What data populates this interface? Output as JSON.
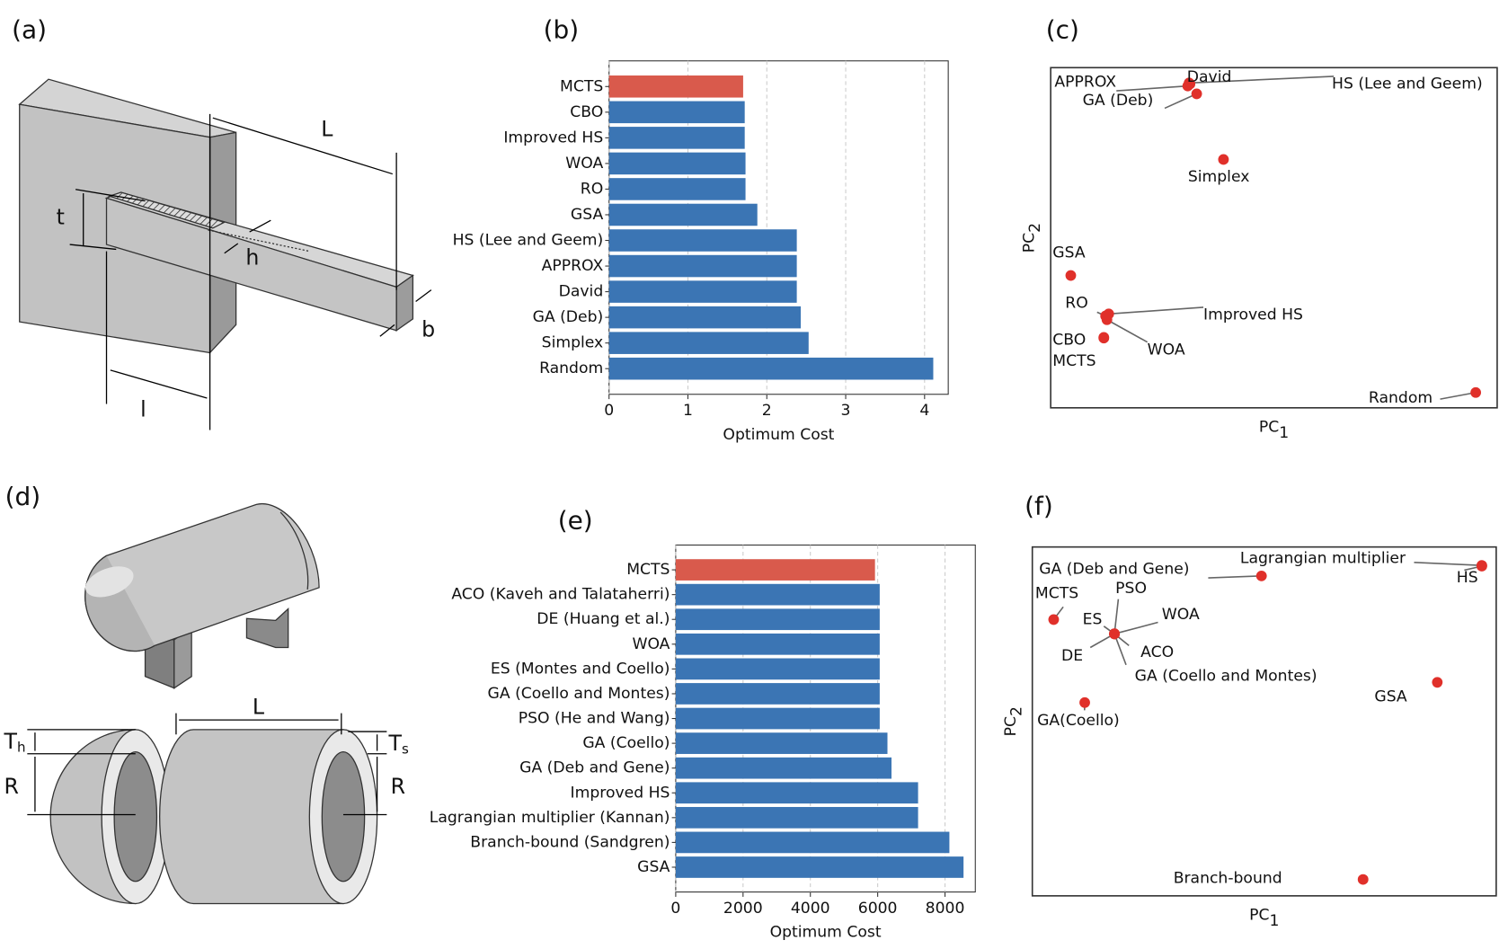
{
  "diagrams": [
    {
      "panel": "(a)",
      "labels": [
        {
          "text": "L"
        },
        {
          "text": "t"
        },
        {
          "text": "h"
        },
        {
          "text": "b"
        },
        {
          "text": "l"
        }
      ]
    },
    {
      "panel": "(d)",
      "labels": [
        {
          "text": "T",
          "sub": "h"
        },
        {
          "text": "R"
        },
        {
          "text": "L"
        },
        {
          "text": "T",
          "sub": "s"
        },
        {
          "text": "R"
        }
      ]
    }
  ],
  "chart_data": [
    {
      "type": "bar",
      "orientation": "horizontal",
      "panel": "(b)",
      "categories": [
        "MCTS",
        "CBO",
        "Improved HS",
        "WOA",
        "RO",
        "GSA",
        "HS (Lee and Geem)",
        "APPROX",
        "David",
        "GA (Deb)",
        "Simplex",
        "Random"
      ],
      "values": [
        1.7,
        1.72,
        1.72,
        1.73,
        1.73,
        1.88,
        2.38,
        2.38,
        2.38,
        2.43,
        2.53,
        4.11
      ],
      "colors": [
        "#d95a4c",
        "#3b75b4",
        "#3b75b4",
        "#3b75b4",
        "#3b75b4",
        "#3b75b4",
        "#3b75b4",
        "#3b75b4",
        "#3b75b4",
        "#3b75b4",
        "#3b75b4",
        "#3b75b4"
      ],
      "x_label": "Optimum Cost",
      "xlim": [
        0,
        4.3
      ],
      "xticks": [
        0,
        1,
        2,
        3,
        4
      ],
      "grid": true
    },
    {
      "type": "scatter",
      "panel": "(c)",
      "x_label": "PC",
      "x_label_sub": "1",
      "y_label": "PC",
      "y_label_sub": "2",
      "labels": [
        "MCTS",
        "CBO",
        "Improved HS",
        "WOA",
        "RO",
        "GSA",
        "HS (Lee and Geem)",
        "APPROX",
        "David",
        "GA (Deb)",
        "Simplex",
        "Random"
      ],
      "x": [
        0.119,
        0.119,
        0.13,
        0.126,
        0.123,
        0.045,
        0.31,
        0.307,
        0.312,
        0.327,
        0.387,
        0.952
      ],
      "y": [
        0.205,
        0.207,
        0.276,
        0.259,
        0.27,
        0.389,
        0.955,
        0.946,
        0.952,
        0.923,
        0.73,
        0.045
      ],
      "color": "#e0302a",
      "xlim": [
        0,
        1
      ],
      "ylim": [
        0,
        1
      ]
    },
    {
      "type": "bar",
      "orientation": "horizontal",
      "panel": "(e)",
      "categories": [
        "MCTS",
        "ACO (Kaveh and Talataherri)",
        "DE (Huang et al.)",
        "WOA",
        "ES (Montes and Coello)",
        "GA (Coello and Montes)",
        "PSO (He and Wang)",
        "GA (Coello)",
        "GA (Deb and Gene)",
        "Improved HS",
        "Lagrangian multiplier (Kannan)",
        "Branch-bound (Sandgren)",
        "GSA"
      ],
      "values": [
        5920,
        6060,
        6060,
        6060,
        6060,
        6060,
        6060,
        6290,
        6410,
        7200,
        7200,
        8130,
        8550
      ],
      "colors": [
        "#d95a4c",
        "#3b75b4",
        "#3b75b4",
        "#3b75b4",
        "#3b75b4",
        "#3b75b4",
        "#3b75b4",
        "#3b75b4",
        "#3b75b4",
        "#3b75b4",
        "#3b75b4",
        "#3b75b4",
        "#3b75b4"
      ],
      "x_label": "Optimum Cost",
      "xlim": [
        0,
        8900
      ],
      "xticks": [
        0,
        2000,
        4000,
        6000,
        8000
      ],
      "grid": true
    },
    {
      "type": "scatter",
      "panel": "(f)",
      "x_label": "PC",
      "x_label_sub": "1",
      "y_label": "PC",
      "y_label_sub": "2",
      "labels": [
        "MCTS",
        "GA (Deb and Gene)",
        "Lagrangian multiplier",
        "HS",
        "PSO",
        "ES",
        "WOA",
        "DE",
        "ACO",
        "GA (Coello and Montes)",
        "GSA",
        "GA(Coello)",
        "Branch-bound"
      ],
      "x": [
        0.046,
        0.494,
        0.969,
        0.969,
        0.177,
        0.177,
        0.177,
        0.177,
        0.177,
        0.177,
        0.873,
        0.113,
        0.713
      ],
      "y": [
        0.792,
        0.917,
        0.947,
        0.945,
        0.751,
        0.751,
        0.751,
        0.751,
        0.751,
        0.751,
        0.612,
        0.554,
        0.047
      ],
      "color": "#e0302a",
      "xlim": [
        0,
        1
      ],
      "ylim": [
        0,
        1
      ]
    }
  ]
}
